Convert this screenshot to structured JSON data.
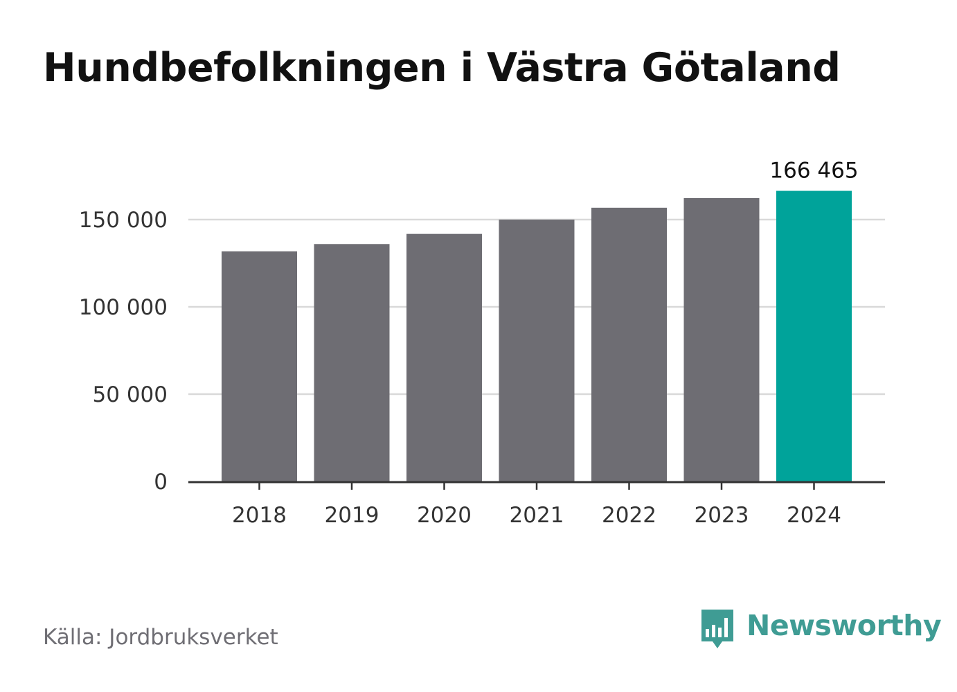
{
  "title": "Hundbefolkningen i Västra Götaland",
  "source": "Källa: Jordbruksverket",
  "brand": {
    "name": "Newsworthy",
    "icon": "bar-chart-speech-bubble-icon",
    "color": "#3f9c94"
  },
  "colors": {
    "bar": "#6e6d73",
    "highlight": "#00a39a",
    "grid": "#d9d9d9",
    "axis": "#333333",
    "text": "#333333"
  },
  "chart_data": {
    "type": "bar",
    "categories": [
      "2018",
      "2019",
      "2020",
      "2021",
      "2022",
      "2023",
      "2024"
    ],
    "values": [
      131800,
      136000,
      141800,
      150000,
      156800,
      162300,
      166465
    ],
    "highlight_index": 6,
    "data_labels": [
      {
        "index": 6,
        "text": "166 465"
      }
    ],
    "ylim": [
      0,
      180000
    ],
    "yticks": [
      0,
      50000,
      100000,
      150000
    ],
    "ytick_labels": [
      "0",
      "50 000",
      "100 000",
      "150 000"
    ],
    "grid": true,
    "xlabel": "",
    "ylabel": ""
  }
}
